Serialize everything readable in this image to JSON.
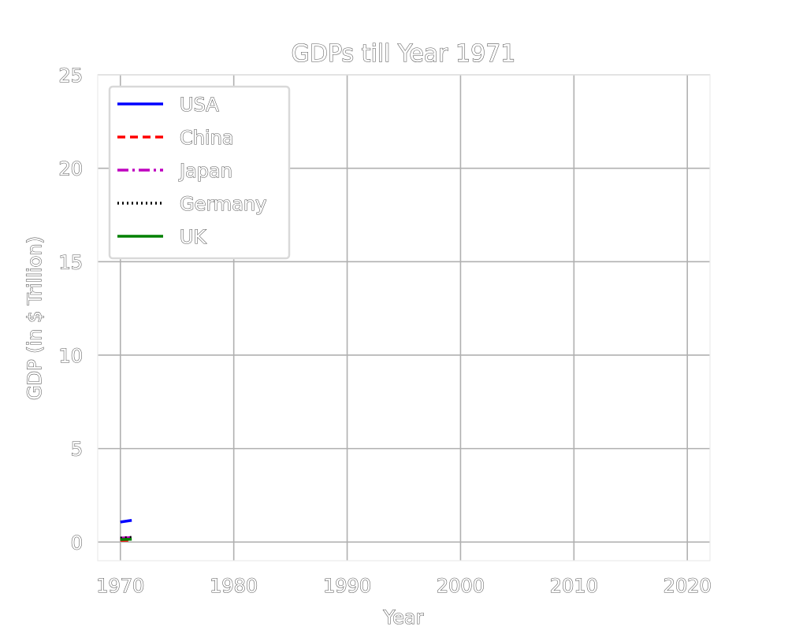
{
  "chart_data": {
    "type": "line",
    "title": "GDPs till Year 1971",
    "xlabel": "Year",
    "ylabel": "GDP (in $ Trillion)",
    "xlim": [
      1968,
      2022
    ],
    "ylim": [
      -1,
      25
    ],
    "x_ticks": [
      1970,
      1980,
      1990,
      2000,
      2010,
      2020
    ],
    "y_ticks": [
      0,
      5,
      10,
      15,
      20,
      25
    ],
    "grid": true,
    "legend_position": "top-left",
    "x": [
      1970,
      1971
    ],
    "series": [
      {
        "name": "USA",
        "values": [
          1.07,
          1.16
        ],
        "color": "#0000ff",
        "style": "solid"
      },
      {
        "name": "China",
        "values": [
          0.09,
          0.1
        ],
        "color": "#ff0000",
        "style": "dashed"
      },
      {
        "name": "Japan",
        "values": [
          0.21,
          0.24
        ],
        "color": "#bf00bf",
        "style": "dashdot"
      },
      {
        "name": "Germany",
        "values": [
          0.21,
          0.25
        ],
        "color": "#000000",
        "style": "dotted"
      },
      {
        "name": "UK",
        "values": [
          0.13,
          0.15
        ],
        "color": "#008000",
        "style": "solid"
      }
    ]
  }
}
